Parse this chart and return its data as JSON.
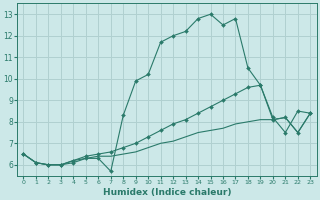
{
  "xlabel": "Humidex (Indice chaleur)",
  "background_color": "#cce8e8",
  "grid_color": "#b0d0d0",
  "line_color": "#2a7a6a",
  "xlim": [
    -0.5,
    23.5
  ],
  "ylim": [
    5.5,
    13.5
  ],
  "xticks": [
    0,
    1,
    2,
    3,
    4,
    5,
    6,
    7,
    8,
    9,
    10,
    11,
    12,
    13,
    14,
    15,
    16,
    17,
    18,
    19,
    20,
    21,
    22,
    23
  ],
  "yticks": [
    6,
    7,
    8,
    9,
    10,
    11,
    12,
    13
  ],
  "line1_x": [
    0,
    1,
    2,
    3,
    4,
    5,
    6,
    7,
    8,
    9,
    10,
    11,
    12,
    13,
    14,
    15,
    16,
    17,
    18,
    19,
    20,
    21,
    22,
    23
  ],
  "line1_y": [
    6.5,
    6.1,
    6.0,
    6.0,
    6.1,
    6.3,
    6.3,
    5.7,
    8.3,
    9.9,
    10.2,
    11.7,
    12.0,
    12.2,
    12.8,
    13.0,
    12.5,
    12.8,
    10.5,
    9.7,
    8.2,
    7.5,
    8.5,
    8.4
  ],
  "line2_x": [
    0,
    1,
    2,
    3,
    4,
    5,
    6,
    7,
    8,
    9,
    10,
    11,
    12,
    13,
    14,
    15,
    16,
    17,
    18,
    19,
    20,
    21,
    22,
    23
  ],
  "line2_y": [
    6.5,
    6.1,
    6.0,
    6.0,
    6.2,
    6.4,
    6.5,
    6.6,
    6.8,
    7.0,
    7.3,
    7.6,
    7.9,
    8.1,
    8.4,
    8.7,
    9.0,
    9.3,
    9.6,
    9.7,
    8.1,
    8.2,
    7.5,
    8.4
  ],
  "line3_x": [
    0,
    1,
    2,
    3,
    4,
    5,
    6,
    7,
    8,
    9,
    10,
    11,
    12,
    13,
    14,
    15,
    16,
    17,
    18,
    19,
    20,
    21,
    22,
    23
  ],
  "line3_y": [
    6.5,
    6.1,
    6.0,
    6.0,
    6.2,
    6.3,
    6.4,
    6.4,
    6.5,
    6.6,
    6.8,
    7.0,
    7.1,
    7.3,
    7.5,
    7.6,
    7.7,
    7.9,
    8.0,
    8.1,
    8.1,
    8.2,
    7.5,
    8.4
  ]
}
